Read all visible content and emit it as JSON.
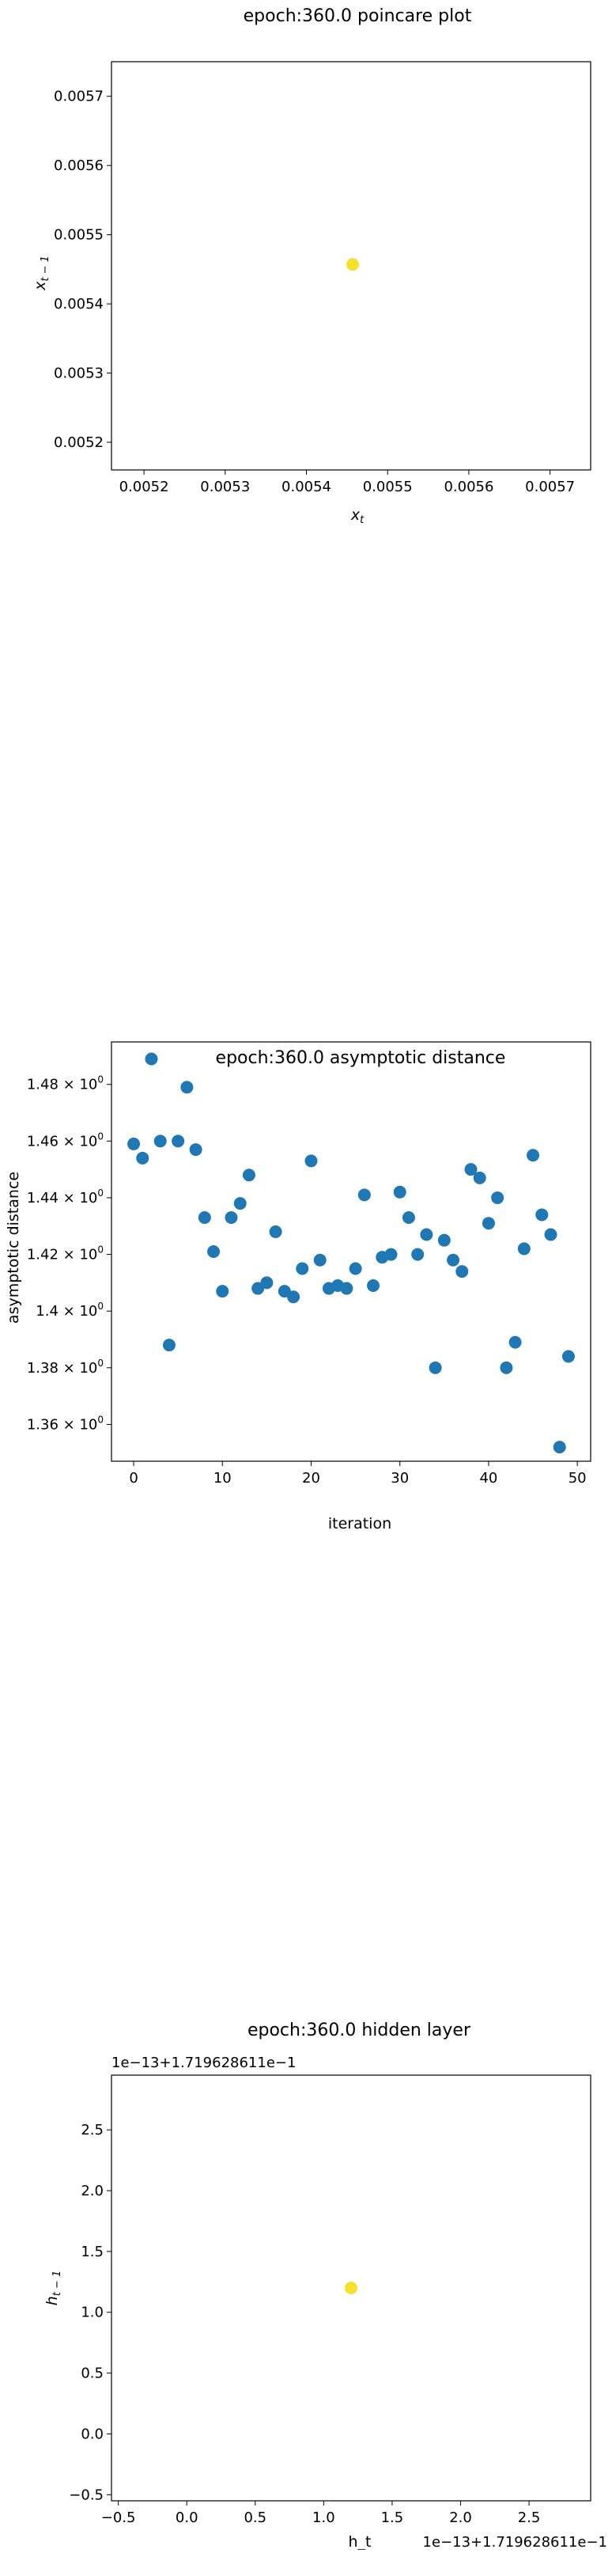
{
  "chart_data": [
    {
      "type": "scatter",
      "title": "epoch:360.0 poincare plot",
      "xlabel": "x_t",
      "ylabel": "x_{t-1}",
      "xlim": [
        0.00516,
        0.00575
      ],
      "ylim": [
        0.00516,
        0.00575
      ],
      "xticks": [
        "0.0052",
        "0.0053",
        "0.0054",
        "0.0055",
        "0.0056",
        "0.0057"
      ],
      "yticks": [
        "0.0052",
        "0.0053",
        "0.0054",
        "0.0055",
        "0.0056",
        "0.0057"
      ],
      "points": [
        {
          "x": 0.005457,
          "y": 0.005457
        }
      ],
      "color": "#f5e12b"
    },
    {
      "type": "scatter",
      "title": "epoch:360.0 asymptotic distance",
      "xlabel": "iteration",
      "ylabel": "asymptotic distance",
      "xlim": [
        -2.5,
        51.5
      ],
      "ylim": [
        1.347,
        1.495
      ],
      "xticks": [
        "0",
        "10",
        "20",
        "30",
        "40",
        "50"
      ],
      "yticks": [
        "1.36 × 10^0",
        "1.38 × 10^0",
        "1.4 × 10^0",
        "1.42 × 10^0",
        "1.44 × 10^0",
        "1.46 × 10^0",
        "1.48 × 10^0"
      ],
      "x": [
        0,
        1,
        2,
        3,
        4,
        5,
        6,
        7,
        8,
        9,
        10,
        11,
        12,
        13,
        14,
        15,
        16,
        17,
        18,
        19,
        20,
        21,
        22,
        23,
        24,
        25,
        26,
        27,
        28,
        29,
        30,
        31,
        32,
        33,
        34,
        35,
        36,
        37,
        38,
        39,
        40,
        41,
        42,
        43,
        44,
        45,
        46,
        47,
        48,
        49
      ],
      "y": [
        1.459,
        1.454,
        1.489,
        1.46,
        1.388,
        1.46,
        1.479,
        1.457,
        1.433,
        1.421,
        1.407,
        1.433,
        1.438,
        1.448,
        1.408,
        1.41,
        1.428,
        1.407,
        1.405,
        1.415,
        1.453,
        1.418,
        1.408,
        1.409,
        1.408,
        1.415,
        1.441,
        1.409,
        1.419,
        1.42,
        1.442,
        1.433,
        1.42,
        1.427,
        1.38,
        1.425,
        1.418,
        1.414,
        1.45,
        1.447,
        1.431,
        1.44,
        1.38,
        1.389,
        1.422,
        1.455,
        1.434,
        1.427,
        1.352,
        1.384
      ],
      "color": "#1f77b4"
    },
    {
      "type": "scatter",
      "title": "epoch:360.0 hidden layer",
      "xlabel": "h_t",
      "ylabel": "h_{t-1}",
      "x_offset_label": "1e−13+1.719628611e−1",
      "y_offset_label": "1e−13+1.719628611e−1",
      "xlim": [
        -0.55,
        2.95
      ],
      "ylim": [
        -0.55,
        2.95
      ],
      "xticks": [
        "−0.5",
        "0.0",
        "0.5",
        "1.0",
        "1.5",
        "2.0",
        "2.5"
      ],
      "yticks": [
        "−0.5",
        "0.0",
        "0.5",
        "1.0",
        "1.5",
        "2.0",
        "2.5"
      ],
      "points": [
        {
          "x": 1.2,
          "y": 1.2
        }
      ],
      "color": "#f5e12b"
    }
  ]
}
